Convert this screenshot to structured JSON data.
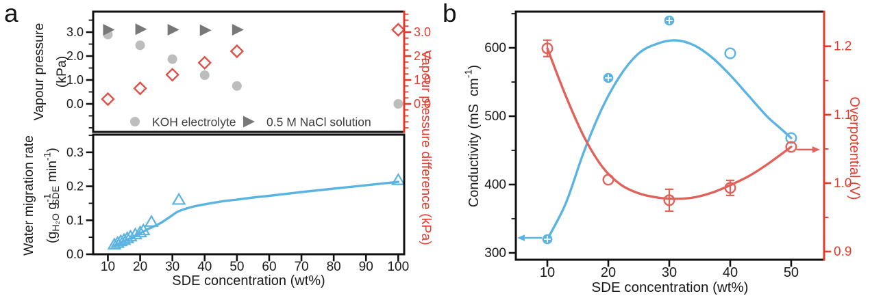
{
  "figure": {
    "panel_a_label": "a",
    "panel_b_label": "b"
  },
  "colors": {
    "blue": "#5AB3E0",
    "red_axis": "#E33B2B",
    "red_marker": "#DC5047",
    "red_series_b": "#E0625A",
    "gray_circle": "#BDBDBD",
    "gray_triangle": "#787878",
    "legend_text": "#3D3D3D",
    "black": "#111111",
    "white": "#FFFFFF"
  },
  "chart_data": [
    {
      "id": "a-top",
      "type": "scatter",
      "xlim": [
        5.44,
        101.84
      ],
      "ylim": [
        -1.171,
        3.857
      ],
      "ylim_right": [
        -1.171,
        3.857
      ],
      "ylabel_left_lines": [
        [
          {
            "t": "Vapour pressure"
          }
        ],
        [
          {
            "t": "(kPa)"
          }
        ]
      ],
      "ylabel_right": [
        {
          "t": "Vapour pressure difference (kPa)"
        }
      ],
      "yticks": {
        "values": [
          0,
          1,
          2,
          3
        ],
        "labels": [
          "0.0",
          "1.0",
          "2.0",
          "3.0"
        ]
      },
      "yticks_right": {
        "values": [
          0,
          1,
          2,
          3
        ],
        "labels": [
          "0.0",
          "1.0",
          "2.0",
          "3.0"
        ]
      },
      "minor_y": [
        -1,
        -0.5,
        0.5,
        1.5,
        2.5,
        3.5
      ],
      "minor_y_right": [
        -1,
        -0.75,
        -0.5,
        -0.25,
        0.25,
        0.5,
        0.75,
        1.25,
        1.5,
        1.75,
        2.25,
        2.5,
        2.75,
        3.25,
        3.5,
        3.75
      ],
      "series": [
        {
          "name": "KOH electrolyte",
          "axis": "left",
          "marker": "circle",
          "color": "gray_circle",
          "x": [
            10,
            20,
            30,
            40,
            50,
            100
          ],
          "y": [
            2.9,
            2.45,
            1.87,
            1.2,
            0.75,
            0.0
          ]
        },
        {
          "name": "0.5 M NaCl solution",
          "axis": "left",
          "marker": "triangle-right",
          "color": "gray_triangle",
          "x": [
            10,
            20,
            30,
            40,
            50
          ],
          "y": [
            3.1,
            3.12,
            3.1,
            3.08,
            3.1
          ]
        },
        {
          "name": "Vapour pressure difference",
          "axis": "right",
          "marker": "diamond-open",
          "color": "red_marker",
          "x": [
            10,
            20,
            30,
            40,
            50,
            100
          ],
          "y": [
            0.2,
            0.65,
            1.22,
            1.72,
            2.2,
            3.1
          ]
        }
      ],
      "legend": {
        "items": [
          {
            "marker": "circle",
            "color": "gray_circle",
            "label": "KOH electrolyte"
          },
          {
            "marker": "triangle-right",
            "color": "gray_triangle",
            "label": "0.5 M NaCl solution"
          }
        ]
      }
    },
    {
      "id": "a-bottom",
      "type": "scatter-line",
      "xlim": [
        5.44,
        101.84
      ],
      "ylim": [
        0,
        0.352
      ],
      "xlabel": [
        {
          "t": "SDE concentration (wt%)"
        }
      ],
      "ylabel_left_lines": [
        [
          {
            "t": "Water migration rate"
          }
        ],
        [
          {
            "t": "(g"
          },
          {
            "sub": "H₂O"
          },
          {
            "t": " g"
          },
          {
            "stack": {
              "sup": "-1",
              "sub": "SDE"
            }
          },
          {
            "t": " min"
          },
          {
            "sup": "-1"
          },
          {
            "t": ")"
          }
        ]
      ],
      "yticks": {
        "values": [
          0,
          0.1,
          0.2,
          0.3
        ],
        "labels": [
          "0.0",
          "0.1",
          "0.2",
          "0.3"
        ]
      },
      "minor_y": [
        0.05,
        0.15,
        0.25,
        0.35
      ],
      "xticks": {
        "values": [
          10,
          20,
          30,
          40,
          50,
          60,
          70,
          80,
          90,
          100
        ],
        "labels": [
          "10",
          "20",
          "30",
          "40",
          "50",
          "60",
          "70",
          "80",
          "90",
          "100"
        ]
      },
      "series": [
        {
          "name": "Water migration rate",
          "axis": "left",
          "marker": "triangle-up-open",
          "color": "blue",
          "x": [
            12,
            13,
            14,
            15,
            16,
            17,
            18.5,
            20,
            21,
            23.5,
            32,
            100
          ],
          "y": [
            0.028,
            0.033,
            0.038,
            0.042,
            0.047,
            0.052,
            0.058,
            0.064,
            0.07,
            0.095,
            0.16,
            0.218
          ],
          "curve": [
            [
              12,
              0.025
            ],
            [
              14,
              0.034
            ],
            [
              16,
              0.043
            ],
            [
              18,
              0.052
            ],
            [
              20,
              0.062
            ],
            [
              22,
              0.072
            ],
            [
              24,
              0.081
            ],
            [
              26,
              0.09
            ],
            [
              28,
              0.102
            ],
            [
              30,
              0.115
            ],
            [
              32,
              0.127
            ],
            [
              36,
              0.139
            ],
            [
              40,
              0.147
            ],
            [
              45,
              0.155
            ],
            [
              50,
              0.161
            ],
            [
              55,
              0.167
            ],
            [
              60,
              0.172
            ],
            [
              70,
              0.183
            ],
            [
              80,
              0.193
            ],
            [
              90,
              0.203
            ],
            [
              100,
              0.213
            ]
          ]
        }
      ]
    },
    {
      "id": "b",
      "type": "scatter-line",
      "xlim": [
        4.83,
        55.4
      ],
      "ylim": [
        290,
        653
      ],
      "ylim_right": [
        0.888,
        1.2507
      ],
      "xlabel": [
        {
          "t": "SDE concentration (wt%)"
        }
      ],
      "ylabel_left_lines": [
        [
          {
            "t": "Conductivity (mS  cm"
          },
          {
            "sup": "-1"
          },
          {
            "t": ")"
          }
        ]
      ],
      "ylabel_right": [
        {
          "t": "Overpotential (V)"
        }
      ],
      "yticks": {
        "values": [
          300,
          400,
          500,
          600
        ],
        "labels": [
          "300",
          "400",
          "500",
          "600"
        ]
      },
      "yticks_right": {
        "values": [
          0.9,
          1.0,
          1.1,
          1.2
        ],
        "labels": [
          "0.9",
          "1.0",
          "1.1",
          "1.2"
        ]
      },
      "minor_y": [
        350,
        450,
        550,
        650
      ],
      "minor_y_right": [
        0.95,
        1.05,
        1.15
      ],
      "xticks": {
        "values": [
          10,
          20,
          30,
          40,
          50
        ],
        "labels": [
          "10",
          "20",
          "30",
          "40",
          "50"
        ]
      },
      "series": [
        {
          "name": "Conductivity",
          "axis": "left",
          "marker": "circle-open",
          "color": "blue",
          "marker_styles": [
            "filled-cross",
            "filled-cross",
            "filled-cross",
            "open",
            "open"
          ],
          "x": [
            10,
            20,
            30,
            40,
            50
          ],
          "y": [
            320,
            556,
            640,
            592,
            468
          ],
          "curve": [
            [
              10,
              320
            ],
            [
              13,
              372
            ],
            [
              16,
              448
            ],
            [
              19,
              512
            ],
            [
              22,
              560
            ],
            [
              25,
              592
            ],
            [
              28,
              606
            ],
            [
              31,
              611
            ],
            [
              34,
              604
            ],
            [
              37,
              586
            ],
            [
              40,
              560
            ],
            [
              43,
              530
            ],
            [
              46,
              500
            ],
            [
              48,
              484
            ],
            [
              50,
              468
            ]
          ]
        },
        {
          "name": "Overpotential",
          "axis": "right",
          "marker": "circle-open",
          "color": "red_series_b",
          "x": [
            10,
            20,
            30,
            40,
            50
          ],
          "y": [
            1.197,
            1.005,
            0.975,
            0.993,
            1.053
          ],
          "yerr": [
            0.012,
            0,
            0.016,
            0.011,
            0
          ],
          "curve": [
            [
              10,
              1.197
            ],
            [
              13,
              1.128
            ],
            [
              16,
              1.068
            ],
            [
              19,
              1.024
            ],
            [
              22,
              0.998
            ],
            [
              25,
              0.985
            ],
            [
              28,
              0.979
            ],
            [
              31,
              0.977
            ],
            [
              34,
              0.979
            ],
            [
              37,
              0.986
            ],
            [
              40,
              0.997
            ],
            [
              43,
              1.01
            ],
            [
              46,
              1.027
            ],
            [
              50,
              1.053
            ]
          ]
        }
      ],
      "annotations": [
        {
          "type": "arrow",
          "dir": "left",
          "x": 10,
          "y": 320,
          "axis": "left",
          "color": "blue"
        },
        {
          "type": "arrow",
          "dir": "right",
          "x": 50,
          "y": 1.053,
          "axis": "right",
          "color": "red_series_b"
        }
      ]
    }
  ]
}
